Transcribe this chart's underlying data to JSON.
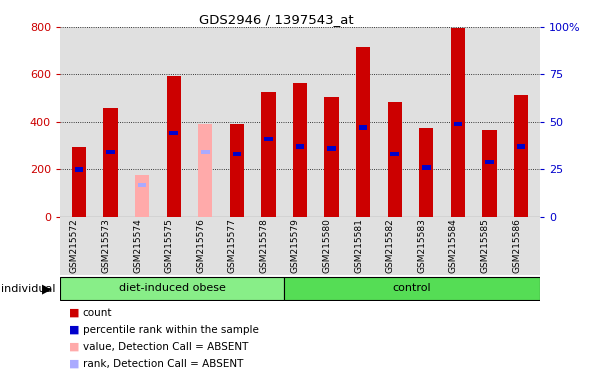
{
  "title": "GDS2946 / 1397543_at",
  "samples": [
    "GSM215572",
    "GSM215573",
    "GSM215574",
    "GSM215575",
    "GSM215576",
    "GSM215577",
    "GSM215578",
    "GSM215579",
    "GSM215580",
    "GSM215581",
    "GSM215582",
    "GSM215583",
    "GSM215584",
    "GSM215585",
    "GSM215586"
  ],
  "count_values": [
    295,
    460,
    0,
    595,
    0,
    390,
    525,
    565,
    505,
    715,
    485,
    375,
    795,
    365,
    515
  ],
  "rank_values_pct": [
    25,
    34,
    0,
    44,
    0,
    33,
    41,
    37,
    36,
    47,
    33,
    26,
    49,
    29,
    37
  ],
  "absent_count": [
    0,
    0,
    175,
    0,
    390,
    0,
    0,
    0,
    0,
    0,
    0,
    0,
    0,
    0,
    0
  ],
  "absent_rank_pct": [
    0,
    0,
    17,
    0,
    34,
    0,
    0,
    0,
    0,
    0,
    0,
    0,
    0,
    0,
    0
  ],
  "group1_label": "diet-induced obese",
  "group2_label": "control",
  "group1_count": 7,
  "group2_count": 8,
  "ylim_left": [
    0,
    800
  ],
  "ylim_right": [
    0,
    100
  ],
  "yticks_left": [
    0,
    200,
    400,
    600,
    800
  ],
  "yticks_right": [
    0,
    25,
    50,
    75,
    100
  ],
  "color_count": "#cc0000",
  "color_rank": "#0000cc",
  "color_absent_count": "#ffaaaa",
  "color_absent_rank": "#aaaaff",
  "color_group1": "#88ee88",
  "color_group2": "#55dd55",
  "background_plot": "#e0e0e0",
  "legend_items": [
    "count",
    "percentile rank within the sample",
    "value, Detection Call = ABSENT",
    "rank, Detection Call = ABSENT"
  ],
  "legend_colors": [
    "#cc0000",
    "#0000cc",
    "#ffaaaa",
    "#aaaaff"
  ],
  "bar_width": 0.45
}
